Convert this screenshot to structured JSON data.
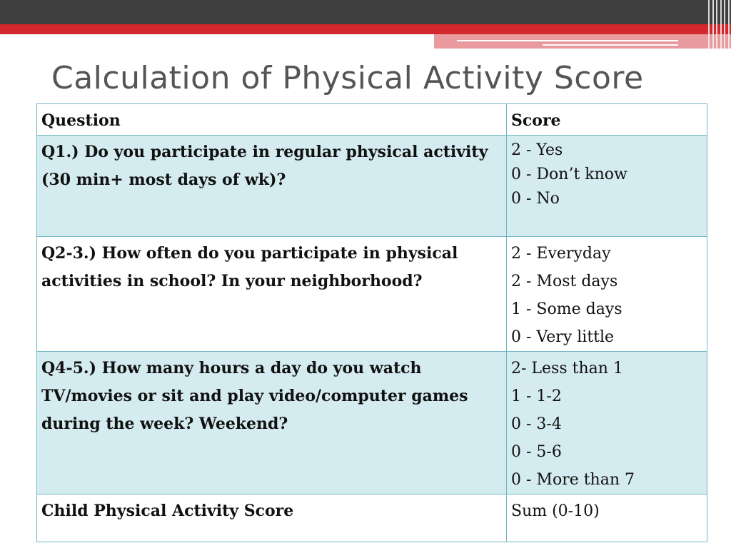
{
  "slide": {
    "title": "Calculation of Physical Activity Score"
  },
  "table": {
    "headers": [
      "Question",
      "Score"
    ],
    "rows": [
      {
        "question": "Q1.) Do you participate in regular physical activity (30 min+ most days of wk)?",
        "scores": [
          "2  - Yes",
          "0  - Don’t know",
          "0  - No"
        ]
      },
      {
        "question": "Q2-3.) How often do you participate in physical activities in school? In your neighborhood?",
        "scores": [
          "2 - Everyday",
          "2 - Most days",
          "1 - Some days",
          "0 - Very little"
        ]
      },
      {
        "question": "Q4-5.) How many hours a day do you watch TV/movies or sit and play video/computer games during the week? Weekend?",
        "scores": [
          "2-  Less than 1",
          "1 - 1-2",
          "0 - 3-4",
          "0 - 5-6",
          "0 - More than 7"
        ]
      },
      {
        "question": "Child Physical Activity Score",
        "scores": [
          "Sum (0-10)"
        ]
      }
    ]
  },
  "colors": {
    "dark_bar": "#3f3f3f",
    "accent_red": "#d3282e",
    "row_tint": "#d4ebf0",
    "border": "#6fb7c5",
    "title_text": "#555555"
  }
}
